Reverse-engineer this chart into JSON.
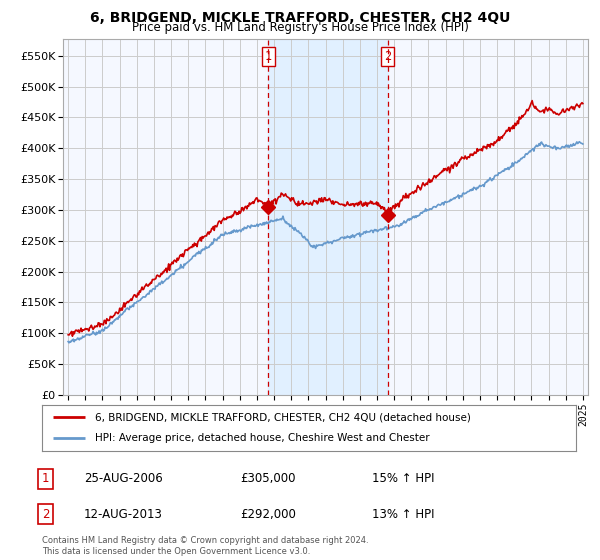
{
  "title": "6, BRIDGEND, MICKLE TRAFFORD, CHESTER, CH2 4QU",
  "subtitle": "Price paid vs. HM Land Registry's House Price Index (HPI)",
  "legend_line1": "6, BRIDGEND, MICKLE TRAFFORD, CHESTER, CH2 4QU (detached house)",
  "legend_line2": "HPI: Average price, detached house, Cheshire West and Chester",
  "annotation1_label": "1",
  "annotation1_date": "25-AUG-2006",
  "annotation1_price": "£305,000",
  "annotation1_hpi": "15% ↑ HPI",
  "annotation2_label": "2",
  "annotation2_date": "12-AUG-2013",
  "annotation2_price": "£292,000",
  "annotation2_hpi": "13% ↑ HPI",
  "footer": "Contains HM Land Registry data © Crown copyright and database right 2024.\nThis data is licensed under the Open Government Licence v3.0.",
  "red_color": "#cc0000",
  "blue_color": "#6699cc",
  "shade_color": "#ddeeff",
  "grid_color": "#cccccc",
  "background_color": "#ffffff",
  "plot_bg_color": "#f5f8ff",
  "marker1_x": 2006.65,
  "marker1_y": 305000,
  "marker2_x": 2013.62,
  "marker2_y": 292000,
  "ylim": [
    0,
    577000
  ],
  "xlim": [
    1994.7,
    2025.3
  ]
}
